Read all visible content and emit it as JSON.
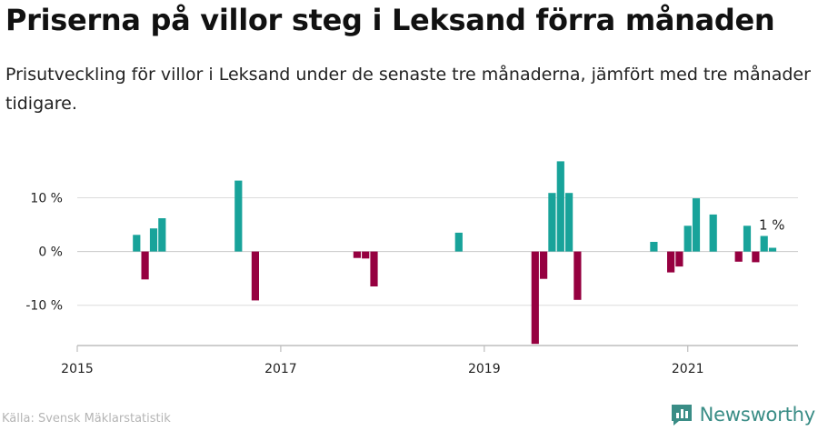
{
  "title": "Priserna på villor steg i Leksand förra månaden",
  "subtitle": "Prisutveckling för villor i Leksand under de senaste tre månaderna, jämfört med tre månader tidigare.",
  "source": "Källa: Svensk Mäklarstatistik",
  "brand": "Newsworthy",
  "colors": {
    "positive": "#18a39a",
    "negative": "#960040",
    "grid": "#dcdcdc",
    "axis": "#bdbdbd",
    "brand": "#3a8d86"
  },
  "chart_data": {
    "type": "bar",
    "title": "Priserna på villor steg i Leksand förra månaden",
    "ylabel": "",
    "xlabel": "",
    "ylim": [
      -17.5,
      15
    ],
    "yticks": [
      10,
      0,
      -10
    ],
    "ytick_labels": [
      "10 %",
      "0 %",
      "-10 %"
    ],
    "xlim": [
      "2015-01",
      "2022-02"
    ],
    "xticks": [
      "2015-01",
      "2017-01",
      "2019-01",
      "2021-01"
    ],
    "xtick_labels": [
      "2015",
      "2017",
      "2019",
      "2021"
    ],
    "grid": true,
    "annotation": {
      "x": "2021-11",
      "text": "1 %"
    },
    "series": [
      {
        "values": [
          {
            "x": "2015-08",
            "y": 3.1
          },
          {
            "x": "2015-09",
            "y": -5.2
          },
          {
            "x": "2015-10",
            "y": 4.3
          },
          {
            "x": "2015-11",
            "y": 6.2
          },
          {
            "x": "2016-08",
            "y": 13.2
          },
          {
            "x": "2016-10",
            "y": -9.1
          },
          {
            "x": "2017-10",
            "y": -1.2
          },
          {
            "x": "2017-11",
            "y": -1.3
          },
          {
            "x": "2017-12",
            "y": -6.5
          },
          {
            "x": "2018-10",
            "y": 3.5
          },
          {
            "x": "2019-07",
            "y": -17.2
          },
          {
            "x": "2019-08",
            "y": -5.1
          },
          {
            "x": "2019-09",
            "y": 10.9
          },
          {
            "x": "2019-10",
            "y": 16.8
          },
          {
            "x": "2019-11",
            "y": 10.9
          },
          {
            "x": "2019-12",
            "y": -9.0
          },
          {
            "x": "2020-09",
            "y": 1.8
          },
          {
            "x": "2020-11",
            "y": -3.9
          },
          {
            "x": "2020-12",
            "y": -2.8
          },
          {
            "x": "2021-01",
            "y": 4.8
          },
          {
            "x": "2021-02",
            "y": 9.9
          },
          {
            "x": "2021-04",
            "y": 6.9
          },
          {
            "x": "2021-07",
            "y": -1.9
          },
          {
            "x": "2021-08",
            "y": 4.8
          },
          {
            "x": "2021-09",
            "y": -2.0
          },
          {
            "x": "2021-10",
            "y": 2.9
          },
          {
            "x": "2021-11",
            "y": 0.7
          }
        ]
      }
    ]
  }
}
